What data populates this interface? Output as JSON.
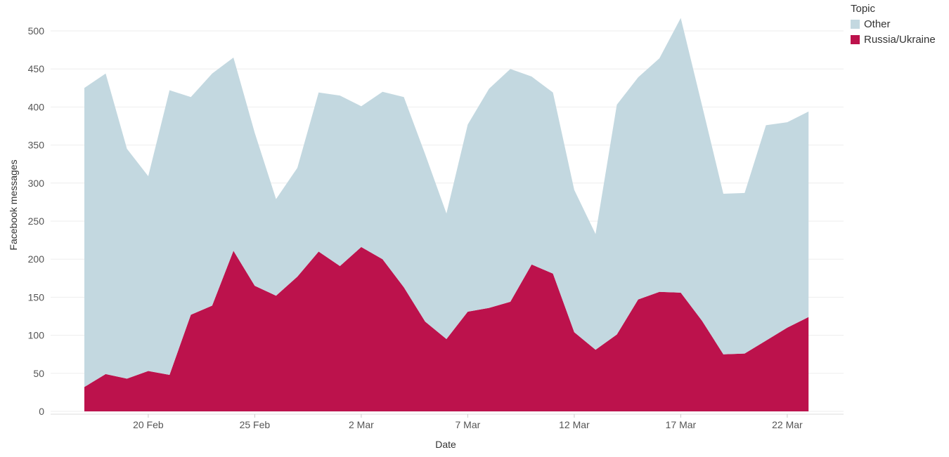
{
  "chart_data": {
    "type": "area",
    "stacked": true,
    "xlabel": "Date",
    "ylabel": "Facebook messages",
    "ylim": [
      0,
      520
    ],
    "yticks": [
      0,
      50,
      100,
      150,
      200,
      250,
      300,
      350,
      400,
      450,
      500
    ],
    "grid": true,
    "legend": {
      "title": "Topic",
      "position": "top-right"
    },
    "x_start_label": "17 Feb",
    "x": [
      "17 Feb",
      "18 Feb",
      "19 Feb",
      "20 Feb",
      "21 Feb",
      "22 Feb",
      "23 Feb",
      "24 Feb",
      "25 Feb",
      "26 Feb",
      "27 Feb",
      "28 Feb",
      "1 Mar",
      "2 Mar",
      "3 Mar",
      "4 Mar",
      "5 Mar",
      "6 Mar",
      "7 Mar",
      "8 Mar",
      "9 Mar",
      "10 Mar",
      "11 Mar",
      "12 Mar",
      "13 Mar",
      "14 Mar",
      "15 Mar",
      "16 Mar",
      "17 Mar",
      "18 Mar",
      "19 Mar",
      "20 Mar",
      "21 Mar",
      "22 Mar",
      "23 Mar"
    ],
    "xticks": [
      "20 Feb",
      "25 Feb",
      "2 Mar",
      "7 Mar",
      "12 Mar",
      "17 Mar",
      "22 Mar"
    ],
    "series": [
      {
        "name": "Russia/Ukraine",
        "color": "#bc124c",
        "values": [
          32,
          49,
          43,
          53,
          48,
          127,
          139,
          211,
          165,
          152,
          177,
          210,
          191,
          216,
          200,
          163,
          118,
          95,
          131,
          136,
          144,
          193,
          181,
          104,
          81,
          101,
          147,
          157,
          156,
          119,
          75,
          76,
          93,
          110,
          124
        ]
      },
      {
        "name": "Other",
        "color": "#c3d8e0",
        "values": [
          393,
          395,
          302,
          256,
          374,
          286,
          305,
          254,
          201,
          127,
          143,
          209,
          224,
          185,
          220,
          250,
          220,
          165,
          246,
          288,
          306,
          247,
          238,
          187,
          152,
          302,
          292,
          307,
          361,
          283,
          211,
          211,
          283,
          270,
          270
        ]
      }
    ]
  }
}
